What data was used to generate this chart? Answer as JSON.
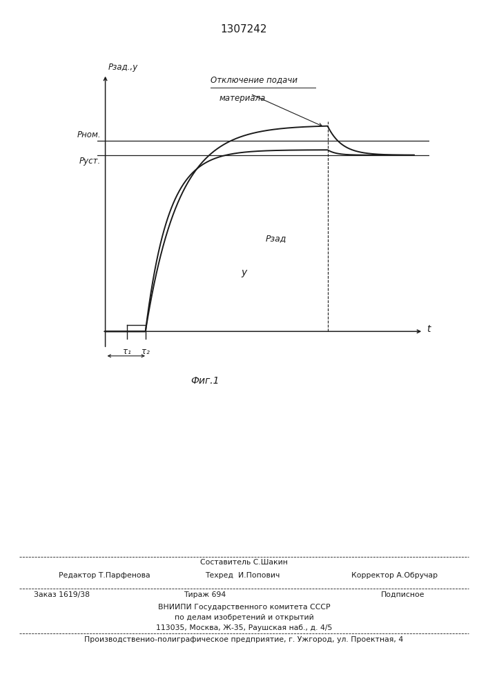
{
  "title": "1307242",
  "fig_label": "Фиг.1",
  "ylabel": "Pзад.,у",
  "xlabel": "t",
  "p_nom_label": "Pном.",
  "p_ust_label": "Pуст.",
  "p_zad_label": "Pзад",
  "y_label": "у",
  "annotation_line1": "Отключение подачи",
  "annotation_line2": "материала",
  "tau1_label": "τ₁",
  "tau2_label": "τ₂",
  "p_nom": 0.78,
  "p_ust": 0.72,
  "t_cutoff": 0.72,
  "bg_color": "#ffffff",
  "line_color": "#1a1a1a",
  "footer_line0": "Составитель С.Шакин",
  "footer_line1a": "Редактор Т.Парфенова",
  "footer_line1b": "Техред  И.Попович",
  "footer_line1c": "Корректор А.Обручар",
  "footer_line2a": "Заказ 1619/38",
  "footer_line2b": "Тираж 694",
  "footer_line2c": "Подписное",
  "footer_line3": "ВНИИПИ Государственного комитета СССР",
  "footer_line4": "по делам изобретений и открытий",
  "footer_line5": "113035, Москва, Ж-35, Раушская наб., д. 4/5",
  "footer_line6": "Производственио-полиграфическое предприятие, г. Ужгород, ул. Проектная, 4"
}
